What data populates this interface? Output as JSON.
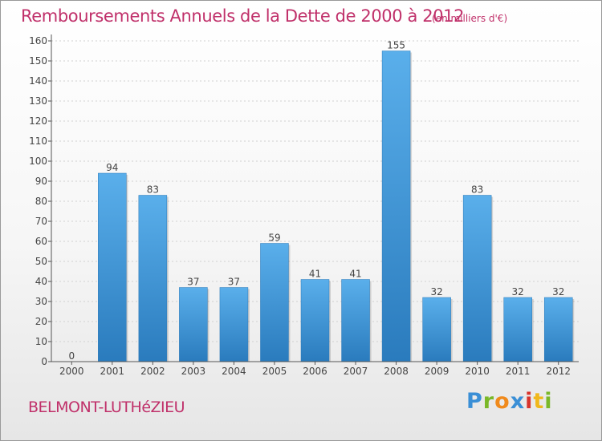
{
  "title": "Remboursements Annuels de la Dette de 2000 à 2012",
  "unit": "(en milliers d'€)",
  "commune": "BELMONT-LUTHéZIEU",
  "brand": {
    "text": "Proxiti",
    "letter_colors": [
      "#3a8fd6",
      "#7ab828",
      "#f08a1c",
      "#3a8fd6",
      "#d8342c",
      "#f0b81c",
      "#7ab828"
    ]
  },
  "colors": {
    "title": "#c0306a",
    "bar_top": "#5aafeb",
    "bar_bottom": "#2a7bbd",
    "axis": "#555555",
    "grid": "#d0d0d0"
  },
  "chart_data": {
    "type": "bar",
    "categories": [
      "2000",
      "2001",
      "2002",
      "2003",
      "2004",
      "2005",
      "2006",
      "2007",
      "2008",
      "2009",
      "2010",
      "2011",
      "2012"
    ],
    "values": [
      0,
      94,
      83,
      37,
      37,
      59,
      41,
      41,
      155,
      32,
      83,
      32,
      32
    ],
    "ylim": [
      0,
      160
    ],
    "yticks": [
      0,
      10,
      20,
      30,
      40,
      50,
      60,
      70,
      80,
      90,
      100,
      110,
      120,
      130,
      140,
      150,
      160
    ],
    "grid": true,
    "data_labels": true
  }
}
